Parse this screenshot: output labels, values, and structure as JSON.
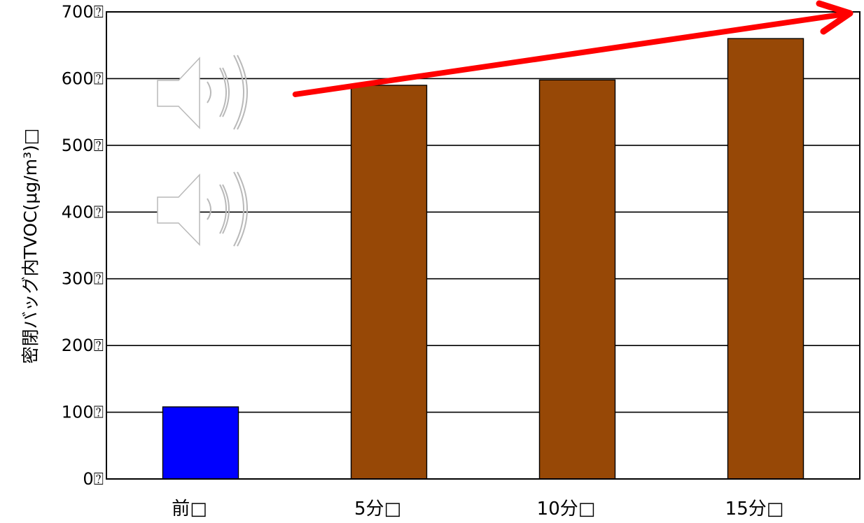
{
  "chart_data": {
    "type": "bar",
    "ylabel": "密閉バッグ内TVOC(μg/m³)□",
    "ylim": [
      0,
      700
    ],
    "y_ticks": [
      "0⍰",
      "100⍰",
      "200⍰",
      "300⍰",
      "400⍰",
      "500⍰",
      "600⍰",
      "700⍰"
    ],
    "y_tick_values": [
      0,
      100,
      200,
      300,
      400,
      500,
      600,
      700
    ],
    "categories": [
      "前□",
      "5分□",
      "10分□",
      "15分□"
    ],
    "values": [
      108,
      590,
      598,
      660
    ],
    "bar_colors": [
      "#0000ff",
      "#974806",
      "#974806",
      "#974806"
    ],
    "grid": true,
    "annotations": {
      "arrow": {
        "color": "#ff0000",
        "from": [
          0.75,
          590
        ],
        "to": [
          4,
          700
        ]
      },
      "icons": [
        "speaker-icon",
        "speaker-icon"
      ]
    }
  }
}
